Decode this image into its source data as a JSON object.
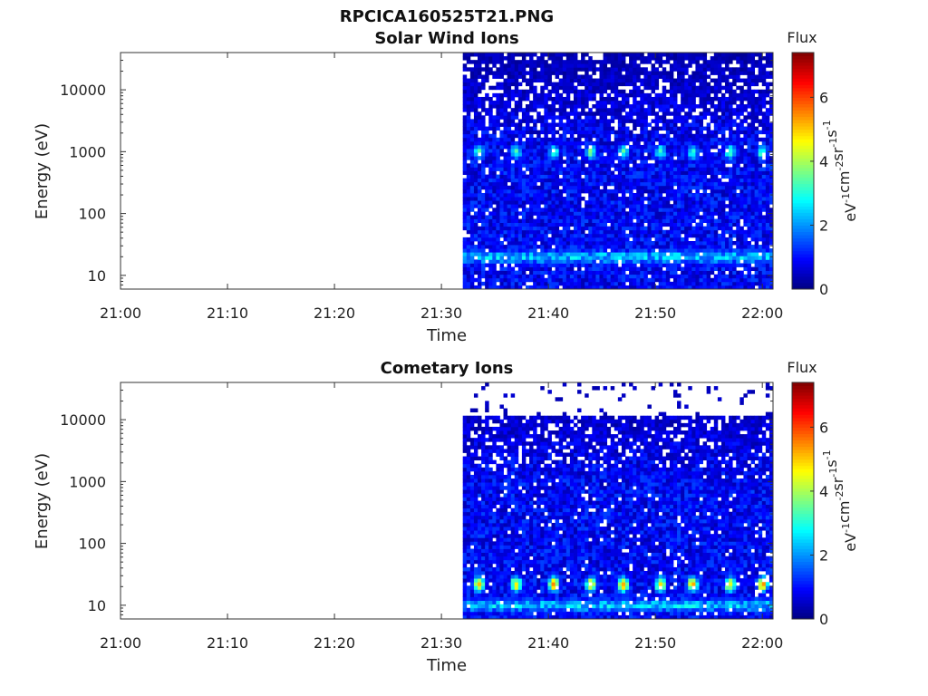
{
  "figure": {
    "title": "RPCICA160525T21.PNG"
  },
  "colorbar": {
    "label": "Flux",
    "units_parts": [
      "eV",
      "-1",
      "cm",
      "-2",
      "sr",
      "-1",
      "s",
      "-1"
    ],
    "ticks": [
      "0",
      "2",
      "4",
      "6"
    ],
    "range": [
      0,
      7.4
    ],
    "colormap": "jet"
  },
  "chart_data": [
    {
      "type": "heatmap",
      "title": "Solar Wind Ions",
      "xlabel": "Time",
      "ylabel": "Energy (eV)",
      "x_ticks": [
        "21:00",
        "21:10",
        "21:20",
        "21:30",
        "21:40",
        "21:50",
        "22:00"
      ],
      "xlim": [
        "21:00",
        "22:01"
      ],
      "y_scale": "log",
      "y_ticks": [
        "10",
        "100",
        "1000",
        "10000"
      ],
      "ylim": [
        6,
        40000
      ],
      "data_start": "21:32",
      "data_end": "22:01",
      "pulse_times": [
        "21:33:30",
        "21:37:00",
        "21:40:30",
        "21:44:00",
        "21:47:00",
        "21:50:30",
        "21:53:30",
        "21:57:00",
        "22:00:00"
      ],
      "features": [
        {
          "label": "solar wind peak",
          "energy_eV": 1000,
          "flux": 3.5
        },
        {
          "label": "low-energy band",
          "energy_eV": 20,
          "flux": 2.5
        }
      ],
      "background_flux": 1.0
    },
    {
      "type": "heatmap",
      "title": "Cometary Ions",
      "xlabel": "Time",
      "ylabel": "Energy (eV)",
      "x_ticks": [
        "21:00",
        "21:10",
        "21:20",
        "21:30",
        "21:40",
        "21:50",
        "22:00"
      ],
      "xlim": [
        "21:00",
        "22:01"
      ],
      "y_scale": "log",
      "y_ticks": [
        "10",
        "100",
        "1000",
        "10000"
      ],
      "ylim": [
        6,
        40000
      ],
      "data_start": "21:32",
      "data_end": "22:01",
      "data_top_eV": 11000,
      "pulse_times": [
        "21:33:30",
        "21:37:00",
        "21:40:30",
        "21:44:00",
        "21:47:00",
        "21:50:30",
        "21:53:30",
        "21:57:00",
        "22:00:00"
      ],
      "features": [
        {
          "label": "cometary ion peak",
          "energy_eV": 22,
          "flux": 5.2
        },
        {
          "label": "low-energy band",
          "energy_eV": 10,
          "flux": 2.5
        }
      ],
      "background_flux": 1.0
    }
  ]
}
